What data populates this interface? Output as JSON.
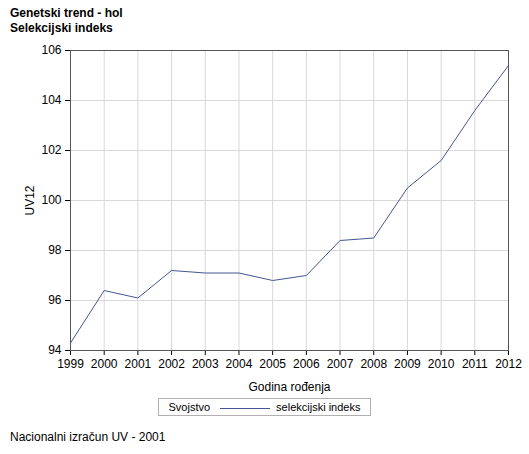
{
  "chart_data": {
    "type": "line",
    "title": "Genetski trend - hol",
    "subtitle": "Selekcijski indeks",
    "x_label": "Godina rođenja",
    "y_label": "UV12",
    "legend_title": "Svojstvo",
    "footnote": "Nacionalni izračun UV - 2001",
    "x": [
      1999,
      2000,
      2001,
      2002,
      2003,
      2004,
      2005,
      2006,
      2007,
      2008,
      2009,
      2010,
      2011,
      2012
    ],
    "series": [
      {
        "name": "selekcijski indeks",
        "color": "#445694",
        "values": [
          94.3,
          96.4,
          96.1,
          97.2,
          97.1,
          97.1,
          96.8,
          97.0,
          98.4,
          98.5,
          100.5,
          101.6,
          103.6,
          105.4
        ]
      }
    ],
    "xlim": [
      1999,
      2012
    ],
    "xticks": [
      1999,
      2000,
      2001,
      2002,
      2003,
      2004,
      2005,
      2006,
      2007,
      2008,
      2009,
      2010,
      2011,
      2012
    ],
    "ylim": [
      94,
      106
    ],
    "yticks": [
      94,
      96,
      98,
      100,
      102,
      104,
      106
    ],
    "grid": true,
    "legend": "bottom"
  }
}
